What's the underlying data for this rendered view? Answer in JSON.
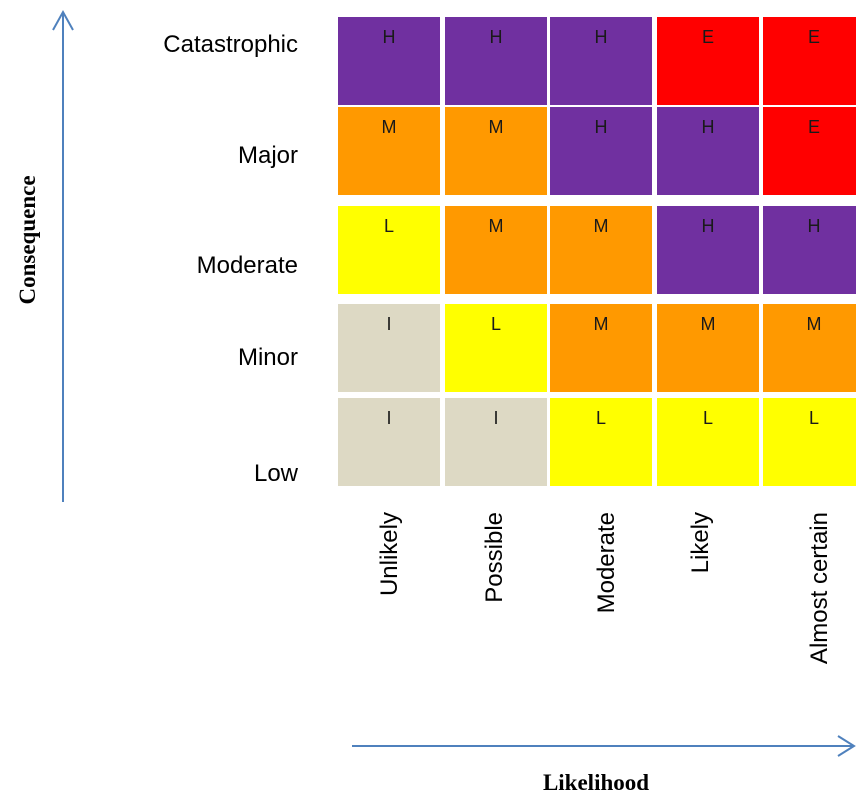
{
  "colors": {
    "H": "#7030a0",
    "E": "#ff0000",
    "M": "#ff9900",
    "L": "#ffff00",
    "I": "#ddd9c4",
    "arrow": "#4f81bd"
  },
  "axes": {
    "y_title": "Consequence",
    "x_title": "Likelihood"
  },
  "rows": [
    "Catastrophic",
    "Major",
    "Moderate",
    "Minor",
    "Low"
  ],
  "columns": [
    "Unlikely",
    "Possible",
    "Moderate",
    "Likely",
    "Almost certain"
  ],
  "matrix": [
    [
      "H",
      "H",
      "H",
      "E",
      "E"
    ],
    [
      "M",
      "M",
      "H",
      "H",
      "E"
    ],
    [
      "L",
      "M",
      "M",
      "H",
      "H"
    ],
    [
      "I",
      "L",
      "M",
      "M",
      "M"
    ],
    [
      "I",
      "I",
      "L",
      "L",
      "L"
    ]
  ]
}
